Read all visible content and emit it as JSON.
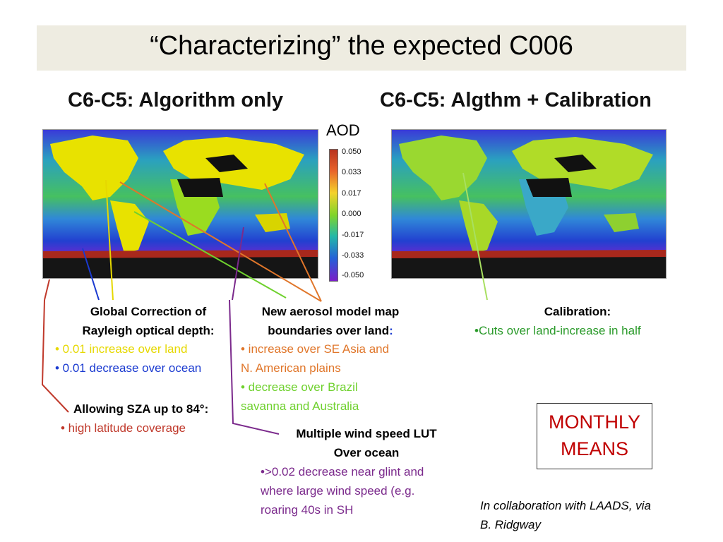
{
  "slide_title": "“Characterizing” the expected C006",
  "left_panel": {
    "heading": "C6-C5: Algorithm only"
  },
  "right_panel": {
    "heading": "C6-C5: Algthm + Calibration"
  },
  "colorbar": {
    "title": "AOD",
    "ticks": [
      "0.050",
      "0.033",
      "0.017",
      "0.000",
      "-0.017",
      "-0.033",
      "-0.050"
    ],
    "colors": [
      "#b8321e",
      "#e8622a",
      "#f4d22a",
      "#7fd42a",
      "#23b8a8",
      "#2560d8",
      "#7b1ec8"
    ]
  },
  "notes": {
    "rayleigh": {
      "title_line1": "Global Correction of",
      "title_line2": "Rayleigh optical depth:",
      "bullet1": "• 0.01 increase over land",
      "bullet2": "• 0.01 decrease over ocean"
    },
    "sza": {
      "title": "Allowing SZA up to 84°:",
      "bullet": "• high latitude coverage"
    },
    "aerosol": {
      "title_line1": "New aerosol model map",
      "title_line2": "boundaries over land",
      "title_colon": ":",
      "bullet1_line1": "• increase over SE Asia and",
      "bullet1_line2": "N. American plains",
      "bullet2_line1": "• decrease over Brazil",
      "bullet2_line2": "savanna and Australia"
    },
    "wind": {
      "title_line1": "Multiple wind speed LUT",
      "title_line2": "Over ocean",
      "bullet_line1": "•>0.02 decrease near glint and",
      "bullet_line2": "where large wind speed (e.g.",
      "bullet_line3": "roaring 40s in SH"
    },
    "calibration": {
      "title": "Calibration:",
      "bullet": "•Cuts over land-increase in half"
    }
  },
  "monthly_box": {
    "line1": "MONTHLY",
    "line2": "MEANS"
  },
  "credit": {
    "line1": "In collaboration with LAADS, via",
    "line2": "B. Ridgway"
  },
  "colors": {
    "rayleigh_title": "#000000",
    "land_yellow": "#e6d800",
    "ocean_blue": "#1a3ad0",
    "sza_red": "#c0392b",
    "aerosol_orange": "#e0762a",
    "aerosol_green": "#6fd12e",
    "wind_purple": "#7b2a8c",
    "calib_green": "#2a9a2a",
    "monthly_red": "#c00000"
  }
}
